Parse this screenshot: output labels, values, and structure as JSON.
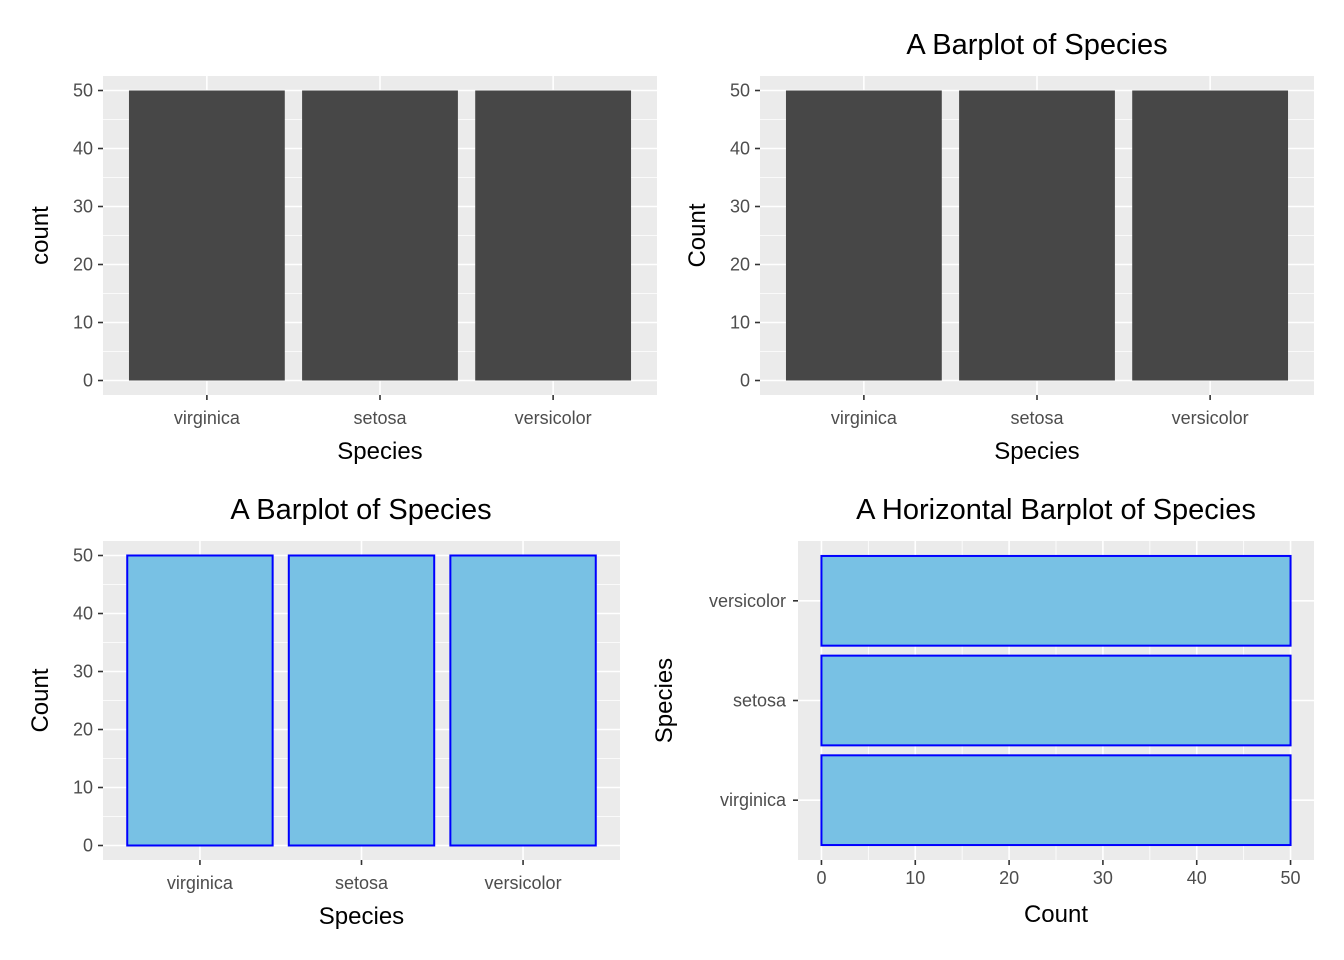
{
  "chart_data": [
    {
      "type": "bar",
      "orientation": "vertical",
      "title": "",
      "xlabel": "Species",
      "ylabel": "count",
      "categories": [
        "virginica",
        "setosa",
        "versicolor"
      ],
      "values": [
        50,
        50,
        50
      ],
      "ylim": [
        0,
        50
      ],
      "yticks": [
        0,
        10,
        20,
        30,
        40,
        50
      ],
      "grid": true,
      "fill": "#474747",
      "outline": "none",
      "panel_background": "#ebebeb"
    },
    {
      "type": "bar",
      "orientation": "vertical",
      "title": "A Barplot of Species",
      "xlabel": "Species",
      "ylabel": "Count",
      "categories": [
        "virginica",
        "setosa",
        "versicolor"
      ],
      "values": [
        50,
        50,
        50
      ],
      "ylim": [
        0,
        50
      ],
      "yticks": [
        0,
        10,
        20,
        30,
        40,
        50
      ],
      "grid": true,
      "fill": "#474747",
      "outline": "none",
      "panel_background": "#ebebeb"
    },
    {
      "type": "bar",
      "orientation": "vertical",
      "title": "A Barplot of Species",
      "xlabel": "Species",
      "ylabel": "Count",
      "categories": [
        "virginica",
        "setosa",
        "versicolor"
      ],
      "values": [
        50,
        50,
        50
      ],
      "ylim": [
        0,
        50
      ],
      "yticks": [
        0,
        10,
        20,
        30,
        40,
        50
      ],
      "grid": true,
      "fill": "#78c1e4",
      "outline": "#0000ff",
      "panel_background": "#ebebeb"
    },
    {
      "type": "bar",
      "orientation": "horizontal",
      "title": "A Horizontal Barplot of Species",
      "xlabel": "Count",
      "ylabel": "Species",
      "categories": [
        "virginica",
        "setosa",
        "versicolor"
      ],
      "values": [
        50,
        50,
        50
      ],
      "xlim": [
        0,
        50
      ],
      "xticks": [
        0,
        10,
        20,
        30,
        40,
        50
      ],
      "grid": true,
      "fill": "#78c1e4",
      "outline": "#0000ff",
      "panel_background": "#ebebeb"
    }
  ]
}
